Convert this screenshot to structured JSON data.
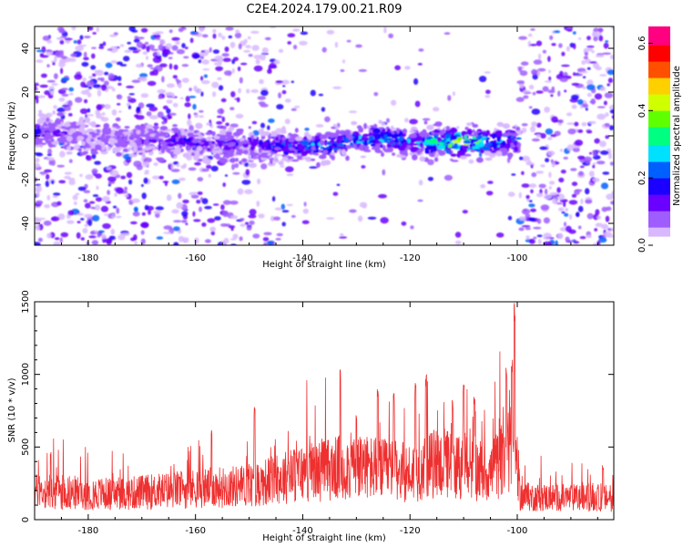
{
  "title": "C2E4.2024.179.00.21.R09",
  "colors": {
    "snr_line": "#ef3030",
    "colormap": [
      "#ffffff",
      "#d8b8ff",
      "#9f5cff",
      "#6a00ff",
      "#1c00ff",
      "#0060ff",
      "#00e0ff",
      "#00ff80",
      "#60ff00",
      "#d0ff00",
      "#ffd000",
      "#ff5000",
      "#ff0000",
      "#ff0080"
    ]
  },
  "chart_data": [
    {
      "type": "heatmap",
      "title": "",
      "xlabel": "Height of straight line (km)",
      "ylabel": "Frequency (Hz)",
      "xlim": [
        -190,
        -82
      ],
      "ylim": [
        -50,
        50
      ],
      "xticks": [
        -180,
        -160,
        -140,
        -120,
        -100
      ],
      "yticks": [
        -40,
        -20,
        0,
        20,
        40
      ],
      "colorbar": {
        "label": "Normalized spectral amplitude",
        "range": [
          0,
          0.65
        ],
        "ticks": [
          "0.0",
          "0.2",
          "0.4",
          "0.6"
        ]
      },
      "description_values": {
        "band_center_hz": [
          [
            -190,
            2
          ],
          [
            -185,
            1
          ],
          [
            -180,
            -1
          ],
          [
            -170,
            -2
          ],
          [
            -160,
            -3
          ],
          [
            -150,
            -4
          ],
          [
            -140,
            -5
          ],
          [
            -135,
            -4
          ],
          [
            -130,
            -2
          ],
          [
            -125,
            -1
          ],
          [
            -120,
            -3
          ],
          [
            -115,
            -3
          ],
          [
            -110,
            -3
          ],
          [
            -105,
            -3
          ],
          [
            -100,
            -2
          ]
        ],
        "band_peak_amplitude": [
          [
            -190,
            0.25
          ],
          [
            -185,
            0.2
          ],
          [
            -180,
            0.15
          ],
          [
            -170,
            0.2
          ],
          [
            -165,
            0.25
          ],
          [
            -160,
            0.25
          ],
          [
            -150,
            0.22
          ],
          [
            -145,
            0.3
          ],
          [
            -140,
            0.35
          ],
          [
            -135,
            0.35
          ],
          [
            -130,
            0.35
          ],
          [
            -125,
            0.4
          ],
          [
            -120,
            0.35
          ],
          [
            -115,
            0.45
          ],
          [
            -110,
            0.55
          ],
          [
            -105,
            0.4
          ],
          [
            -102,
            0.4
          ],
          [
            -100,
            0.3
          ]
        ],
        "background_density": [
          [
            -190,
            0.9
          ],
          [
            -170,
            0.85
          ],
          [
            -160,
            0.7
          ],
          [
            -150,
            0.55
          ],
          [
            -145,
            0.45
          ],
          [
            -140,
            0.15
          ],
          [
            -130,
            0.1
          ],
          [
            -120,
            0.1
          ],
          [
            -115,
            0.05
          ],
          [
            -110,
            0.05
          ],
          [
            -100,
            0.1
          ],
          [
            -99,
            0.85
          ],
          [
            -82,
            0.9
          ]
        ]
      }
    },
    {
      "type": "line",
      "title": "",
      "xlabel": "Height of straight line (km)",
      "ylabel": "SNR (10 * v/v)",
      "xlim": [
        -190,
        -82
      ],
      "ylim": [
        0,
        1500
      ],
      "xticks": [
        -180,
        -160,
        -140,
        -120,
        -100
      ],
      "yticks": [
        0,
        500,
        1000,
        1500
      ],
      "series": [
        {
          "envelope_base": [
            [
              -190,
              200
            ],
            [
              -175,
              180
            ],
            [
              -160,
              220
            ],
            [
              -150,
              240
            ],
            [
              -140,
              330
            ],
            [
              -130,
              380
            ],
            [
              -125,
              350
            ],
            [
              -120,
              330
            ],
            [
              -115,
              400
            ],
            [
              -110,
              380
            ],
            [
              -105,
              330
            ],
            [
              -101,
              500
            ],
            [
              -100,
              430
            ],
            [
              -99.5,
              160
            ],
            [
              -82,
              150
            ]
          ],
          "peaks": [
            [
              -187,
              470
            ],
            [
              -157,
              620
            ],
            [
              -149,
              780
            ],
            [
              -133,
              1040
            ],
            [
              -130,
              730
            ],
            [
              -126,
              900
            ],
            [
              -123,
              880
            ],
            [
              -119,
              940
            ],
            [
              -117,
              1000
            ],
            [
              -112,
              830
            ],
            [
              -110,
              930
            ],
            [
              -108,
              870
            ],
            [
              -102,
              1050
            ],
            [
              -101,
              1100
            ],
            [
              -100.5,
              1500
            ],
            [
              -84,
              380
            ]
          ]
        }
      ]
    }
  ]
}
